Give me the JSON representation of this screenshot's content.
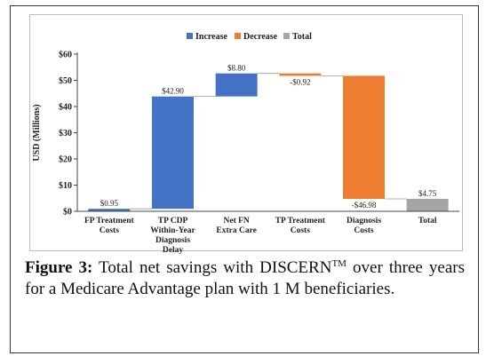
{
  "chart_data": {
    "type": "waterfall",
    "legend": [
      {
        "name": "Increase",
        "color": "#4472c4"
      },
      {
        "name": "Decrease",
        "color": "#ed7d31"
      },
      {
        "name": "Total",
        "color": "#a5a5a5"
      }
    ],
    "legend_placement": "top-center",
    "ylabel": "USD (Millions)",
    "ylim": [
      0,
      60
    ],
    "yticks": [
      "$0",
      "$10",
      "$20",
      "$30",
      "$40",
      "$50",
      "$60"
    ],
    "ytick_values": [
      0,
      10,
      20,
      30,
      40,
      50,
      60
    ],
    "grid": false,
    "steps": [
      {
        "category": [
          "FP Treatment",
          "Costs"
        ],
        "kind": "Increase",
        "value": 0.95,
        "label": "$0.95"
      },
      {
        "category": [
          "TP CDP",
          "Within-Year",
          "Diagnosis",
          "Delay"
        ],
        "kind": "Increase",
        "value": 42.9,
        "label": "$42.90"
      },
      {
        "category": [
          "Net FN",
          "Extra Care"
        ],
        "kind": "Increase",
        "value": 8.8,
        "label": "$8.80"
      },
      {
        "category": [
          "TP Treatment",
          "Costs"
        ],
        "kind": "Decrease",
        "value": -0.92,
        "label": "-$0.92"
      },
      {
        "category": [
          "Diagnosis",
          "Costs"
        ],
        "kind": "Decrease",
        "value": -46.98,
        "label": "-$46.98"
      },
      {
        "category": [
          "Total"
        ],
        "kind": "Total",
        "value": 4.75,
        "label": "$4.75"
      }
    ]
  },
  "caption": {
    "label": "Figure 3:",
    "text_before": " Total net savings with DISCERN",
    "superscript": "TM",
    "text_after": " over three years for a Medicare Advantage plan with 1 M beneficiaries."
  }
}
